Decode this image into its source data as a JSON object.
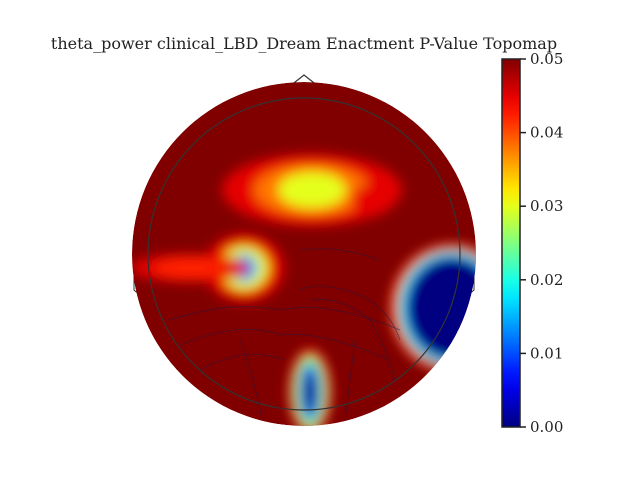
{
  "chart_data": {
    "type": "heatmap",
    "title": "theta_power clinical_LBD_Dream Enactment P-Value Topomap",
    "colormap": "jet",
    "colorbar": {
      "vmin": 0.0,
      "vmax": 0.05,
      "ticks": [
        0.0,
        0.01,
        0.02,
        0.03,
        0.04,
        0.05
      ],
      "tick_labels": [
        "0.00",
        "0.01",
        "0.02",
        "0.03",
        "0.04",
        "0.05"
      ]
    },
    "background_value": 0.05,
    "regions": [
      {
        "name": "frontal-central blob",
        "min_p": 0.03
      },
      {
        "name": "left-temporal blob",
        "min_p": 0.01
      },
      {
        "name": "left-temporal strip",
        "min_p": 0.04
      },
      {
        "name": "right-temporal region",
        "min_p": 0.0
      },
      {
        "name": "occipital-midline blob",
        "min_p": 0.0
      }
    ],
    "grid": false,
    "legend": "none"
  }
}
